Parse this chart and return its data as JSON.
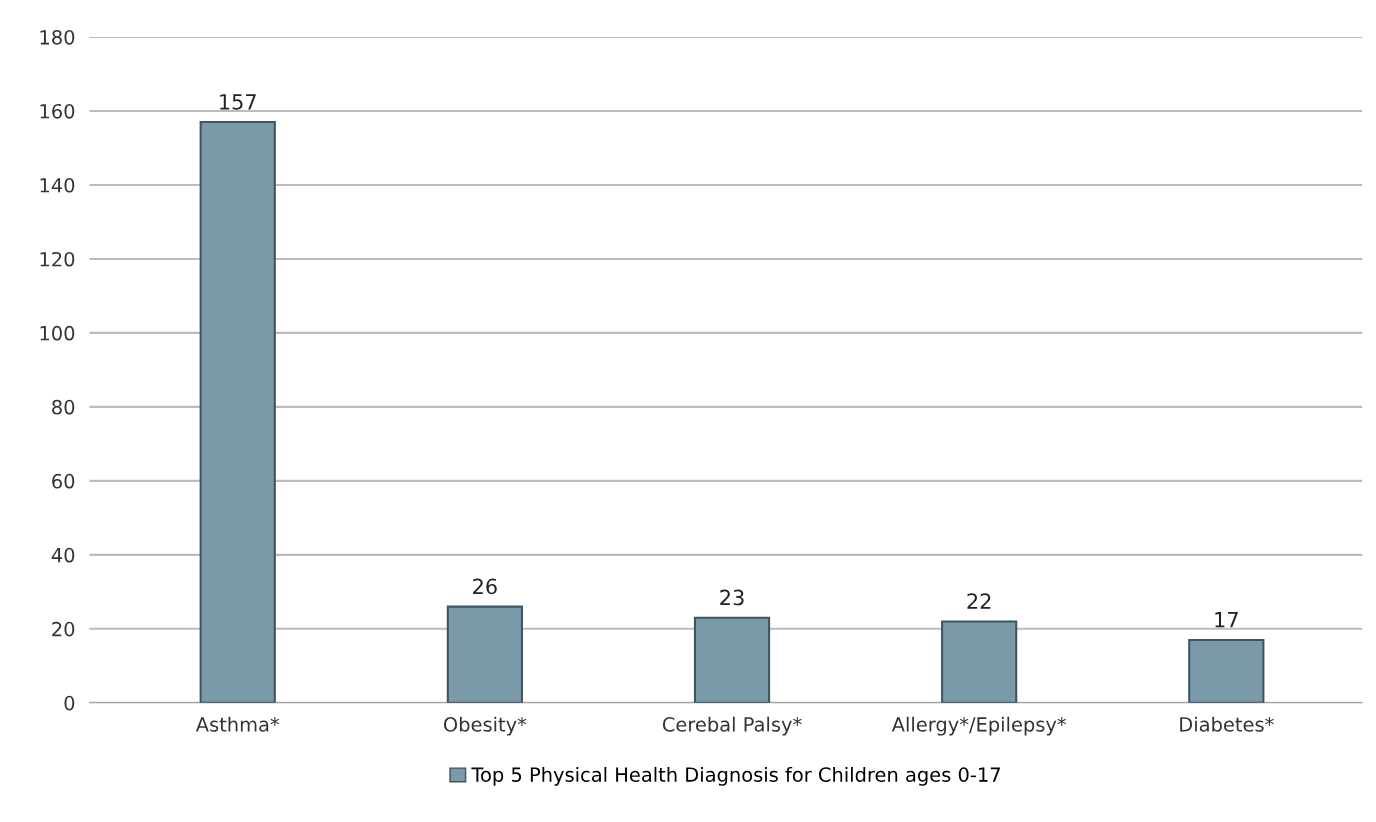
{
  "chart_data": {
    "type": "bar",
    "categories": [
      "Asthma*",
      "Obesity*",
      "Cerebal Palsy*",
      "Allergy*/Epilepsy*",
      "Diabetes*"
    ],
    "series": [
      {
        "name": "Top 5 Physical Health Diagnosis for Children ages 0-17",
        "color": "#7a9aa9",
        "values": [
          157,
          26,
          23,
          22,
          17
        ]
      }
    ],
    "ylim": [
      0,
      180
    ],
    "yticks": [
      0,
      20,
      40,
      60,
      80,
      100,
      120,
      140,
      160,
      180
    ],
    "grid": "y",
    "legend": "bottom",
    "data_labels": true
  }
}
